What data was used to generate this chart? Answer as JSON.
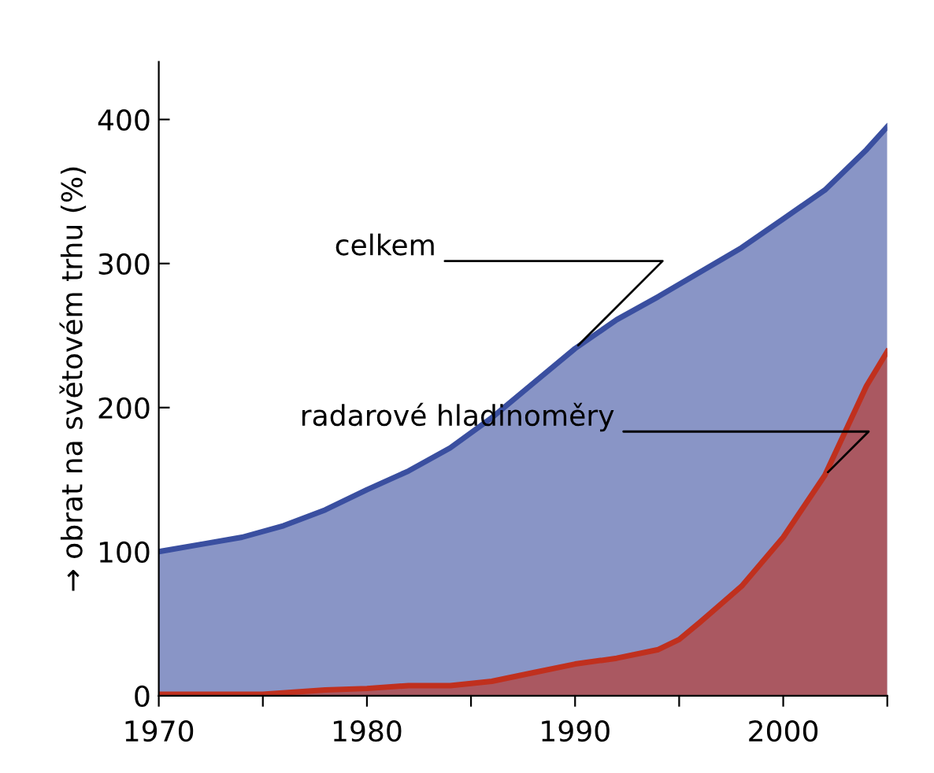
{
  "chart_data": {
    "type": "area",
    "ylabel": "→ obrat na světovém trhu (%)",
    "x": [
      1970,
      1972,
      1974,
      1976,
      1978,
      1980,
      1982,
      1984,
      1986,
      1988,
      1990,
      1992,
      1994,
      1996,
      1998,
      2000,
      2002,
      2004,
      2005
    ],
    "series": [
      {
        "color": "#3a4fa0",
        "values": [
          100,
          105,
          110,
          118,
          129,
          143,
          156,
          172,
          193,
          217,
          241,
          261,
          277,
          294,
          311,
          331,
          351,
          379,
          395
        ]
      },
      {
        "color": "#c0301e",
        "x": [
          1970,
          1975,
          1978,
          1980,
          1982,
          1984,
          1986,
          1988,
          1990,
          1992,
          1994,
          1995,
          1996,
          1998,
          2000,
          2002,
          2004,
          2005
        ],
        "values": [
          1,
          1,
          4,
          5,
          7,
          7,
          10,
          16,
          22,
          26,
          32,
          39,
          51,
          76,
          110,
          153,
          215,
          239
        ]
      }
    ],
    "xlim": [
      1970,
      2005
    ],
    "ylim": [
      0,
      440
    ],
    "xticks": [
      1970,
      {
        "value": 1975,
        "label": null
      },
      1980,
      {
        "value": 1985,
        "label": null
      },
      1990,
      {
        "value": 1995,
        "label": null
      },
      2000,
      {
        "value": 2005,
        "label": null
      }
    ],
    "yticks": [
      0,
      100,
      200,
      300,
      400
    ],
    "grid": false,
    "legend": false,
    "annotations": [
      {
        "text": "celkem",
        "x": 1990,
        "y": 241
      },
      {
        "text": "radarové hladinoměry",
        "x": 2002,
        "y": 153
      }
    ]
  }
}
